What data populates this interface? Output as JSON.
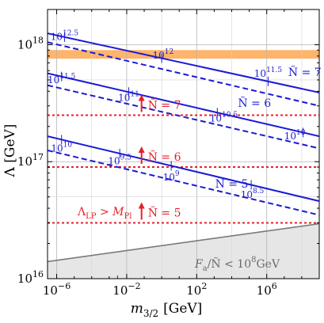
{
  "chart_data": {
    "type": "line",
    "x_scale": "log",
    "y_scale": "log",
    "xlim": [
      3e-07,
      1000000000.0
    ],
    "ylim": [
      1e+16,
      2e+18
    ],
    "grid": true,
    "xlabel_base": "m",
    "xlabel_sub": "3/2",
    "xlabel_unit": "[GeV]",
    "ylabel": "Λ [GeV]",
    "x_ticks": [
      {
        "value": 1e-06,
        "base": "10",
        "exp": "−6"
      },
      {
        "value": 0.01,
        "base": "10",
        "exp": "−2"
      },
      {
        "value": 100.0,
        "base": "10",
        "exp": "2"
      },
      {
        "value": 1000000.0,
        "base": "10",
        "exp": "6"
      }
    ],
    "y_ticks": [
      {
        "value": 1e+16,
        "base": "10",
        "exp": "16"
      },
      {
        "value": 1e+17,
        "base": "10",
        "exp": "17"
      },
      {
        "value": 1e+18,
        "base": "10",
        "exp": "18"
      }
    ],
    "series": [
      {
        "name": "Ñ = 7 (solid)",
        "style": "solid",
        "color": "#1a1ad6",
        "x": [
          3e-07,
          1000000000.0
        ],
        "y": [
          1.25e+18,
          3.9e+17
        ]
      },
      {
        "name": "Ñ = 7 (dashed)",
        "style": "dashed",
        "color": "#1a1ad6",
        "x": [
          3e-07,
          1000000000.0
        ],
        "y": [
          1.05e+18,
          3e+17
        ]
      },
      {
        "name": "Ñ = 6 (solid)",
        "style": "solid",
        "color": "#1a1ad6",
        "x": [
          3e-07,
          1000000000.0
        ],
        "y": [
          5.7e+17,
          1.65e+17
        ]
      },
      {
        "name": "Ñ = 6 (dashed)",
        "style": "dashed",
        "color": "#1a1ad6",
        "x": [
          3e-07,
          1000000000.0
        ],
        "y": [
          4.5e+17,
          1.3e+17
        ]
      },
      {
        "name": "Ñ = 5 (solid)",
        "style": "solid",
        "color": "#1a1ad6",
        "x": [
          3e-07,
          1000000000.0
        ],
        "y": [
          1.65e+17,
          4.6e+16
        ]
      },
      {
        "name": "Ñ = 5 (dashed)",
        "style": "dashed",
        "color": "#1a1ad6",
        "x": [
          3e-07,
          1000000000.0
        ],
        "y": [
          1.25e+17,
          3.5e+16
        ]
      },
      {
        "name": "boundary",
        "style": "solid",
        "color": "#7a7a7a",
        "x": [
          3e-07,
          1000000000.0
        ],
        "y": [
          1.4e+16,
          2.95e+16
        ]
      }
    ],
    "hlines": [
      {
        "name": "Ñ = 7 threshold",
        "y": 2.5e+17,
        "color": "#e8202a",
        "style": "dotted"
      },
      {
        "name": "Ñ = 6 threshold",
        "y": 9e+16,
        "color": "#e8202a",
        "style": "dotted"
      },
      {
        "name": "Ñ = 5 threshold",
        "y": 3e+16,
        "color": "#e8202a",
        "style": "dotted"
      }
    ],
    "band": {
      "y_low": 7.6e+17,
      "y_high": 9e+17,
      "color": "#ffb46b"
    },
    "series_labels": [
      {
        "id": "n7",
        "text": "Ñ = 7",
        "x": 150000000.0,
        "y": 5.4e+17
      },
      {
        "id": "n6",
        "text": "Ñ = 6",
        "x": 200000.0,
        "y": 2.95e+17
      },
      {
        "id": "n5",
        "text": "Ñ = 5",
        "x": 10000.0,
        "y": 6e+16
      }
    ],
    "lambda_labels": [
      {
        "base": "10",
        "exp": "12.5",
        "x": 2.8e-06,
        "y": 1.1e+18
      },
      {
        "base": "10",
        "exp": "12",
        "x": 1.2,
        "y": 7.6e+17
      },
      {
        "base": "10",
        "exp": "11.5",
        "x": 1200000.0,
        "y": 5.3e+17
      },
      {
        "base": "10",
        "exp": "11.5",
        "x": 1.9e-06,
        "y": 4.7e+17
      },
      {
        "base": "10",
        "exp": "11",
        "x": 0.013,
        "y": 3.3e+17
      },
      {
        "base": "10",
        "exp": "10.5",
        "x": 3500.0,
        "y": 2.2e+17
      },
      {
        "base": "10",
        "exp": "10",
        "x": 40000000.0,
        "y": 1.55e+17
      },
      {
        "base": "10",
        "exp": "10",
        "x": 1.9e-06,
        "y": 1.22e+17
      },
      {
        "base": "10",
        "exp": "9.5",
        "x": 0.004,
        "y": 9.5e+16
      },
      {
        "base": "10",
        "exp": "9",
        "x": 3.5,
        "y": 6.9e+16
      },
      {
        "base": "10",
        "exp": "8.5",
        "x": 150000.0,
        "y": 4.9e+16
      }
    ],
    "lambda_ticks": [
      {
        "x": 2.8e-06,
        "line": 0
      },
      {
        "x": 1.0,
        "line": 0
      },
      {
        "x": 1200000.0,
        "line": 0
      },
      {
        "x": 1.9e-06,
        "line": 2
      },
      {
        "x": 0.013,
        "line": 2
      },
      {
        "x": 1500.0,
        "line": 2
      },
      {
        "x": 120000000.0,
        "line": 2
      },
      {
        "x": 1.9e-06,
        "line": 4
      },
      {
        "x": 0.004,
        "line": 4
      },
      {
        "x": 3.5,
        "line": 4
      },
      {
        "x": 130000.0,
        "line": 4
      }
    ],
    "threshold_labels": [
      {
        "id": "n7",
        "text": "Ñ = 7",
        "x": 0.2,
        "y": 2.5e+17
      },
      {
        "id": "n6",
        "text": "Ñ = 6",
        "x": 0.2,
        "y": 9e+16
      },
      {
        "id": "n5",
        "text": "Ñ = 5",
        "x": 0.2,
        "y": 3e+16
      }
    ],
    "annotation_lp": {
      "text_lambda": "Λ",
      "sub_lambda": "LP",
      "gt": " > ",
      "text_m": "M",
      "sub_m": "Pl"
    },
    "region_label": "F",
    "region_label_sub": "a",
    "region_label_rest": "/Ñ < 10",
    "region_label_exp": "8",
    "region_label_unit": "GeV"
  }
}
